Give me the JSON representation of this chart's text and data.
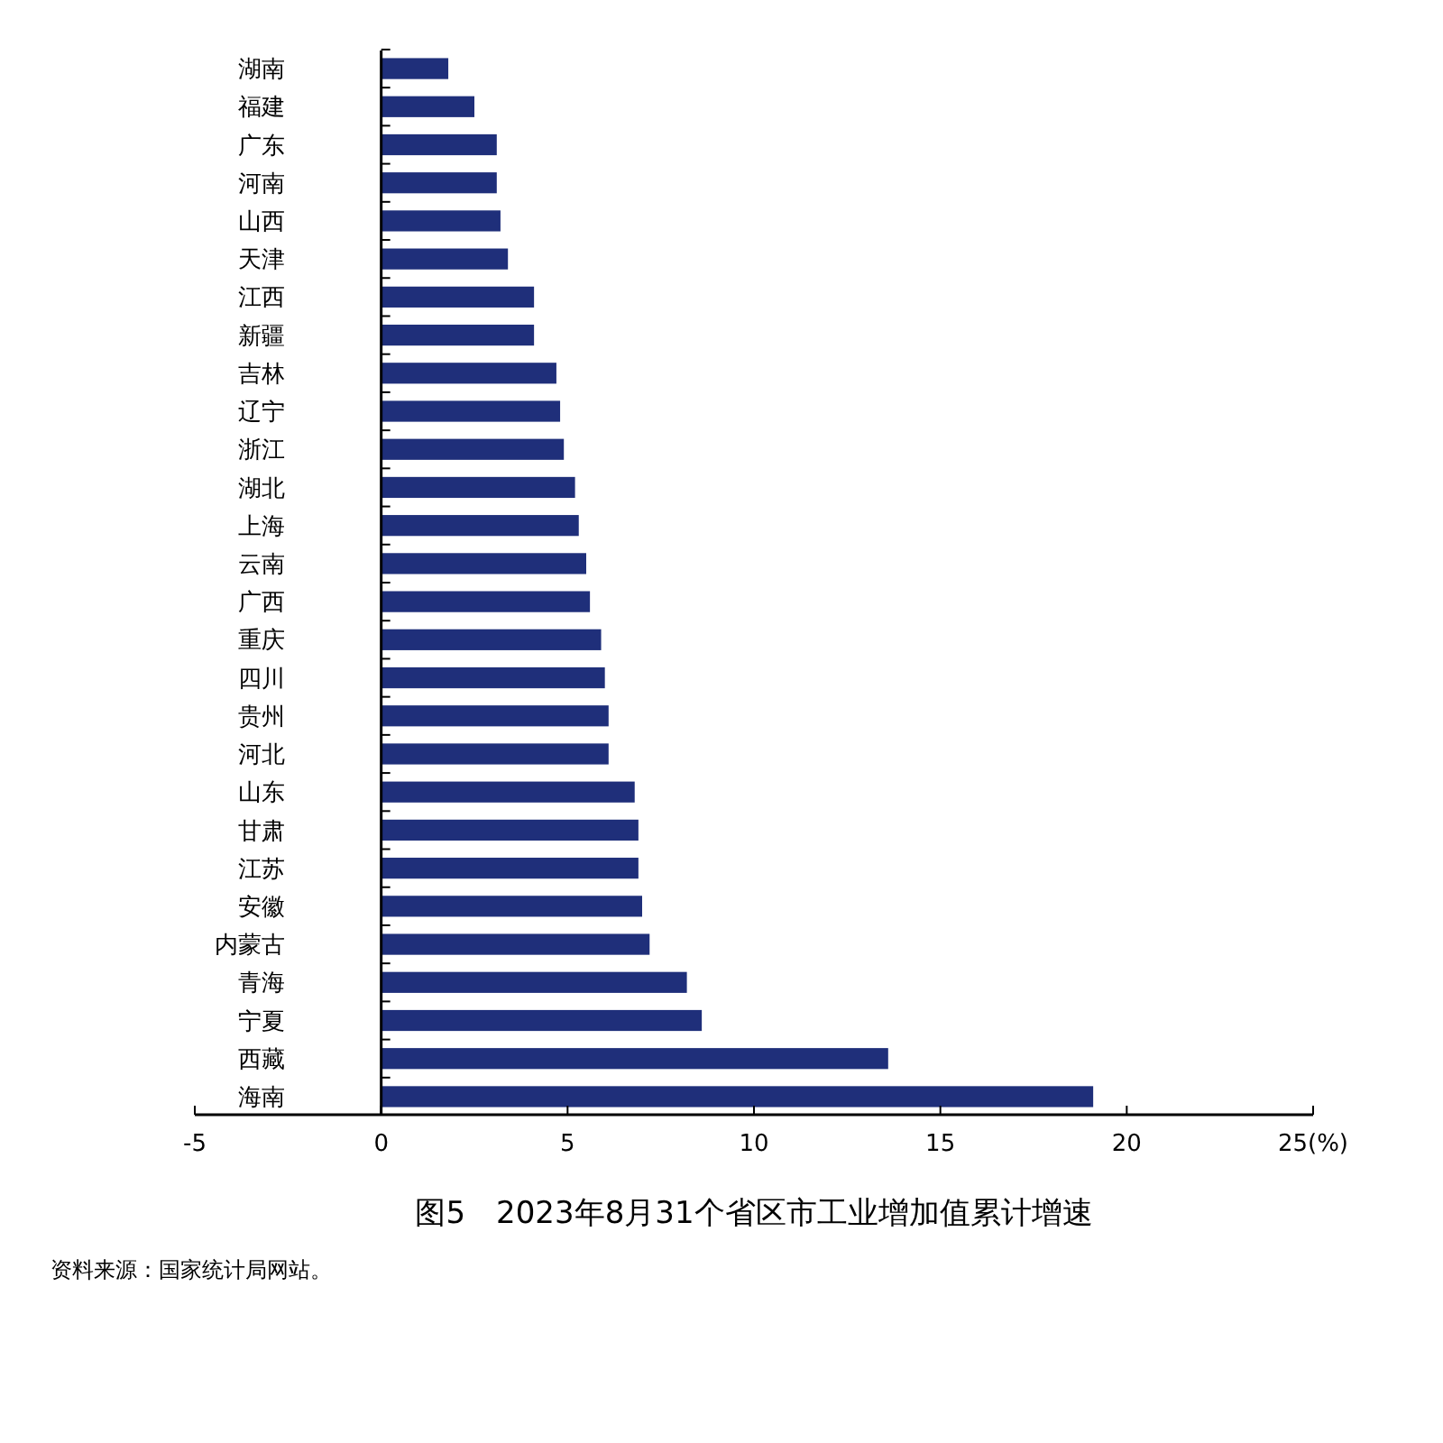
{
  "chart_data": {
    "type": "bar",
    "orientation": "horizontal",
    "title": "图5　2023年8月31个省区市工业增加值累计增速",
    "annotations": [
      "资料来源：国家统计局网站。"
    ],
    "categories": [
      "湖南",
      "福建",
      "广东",
      "河南",
      "山西",
      "天津",
      "江西",
      "新疆",
      "吉林",
      "辽宁",
      "浙江",
      "湖北",
      "上海",
      "云南",
      "广西",
      "重庆",
      "四川",
      "贵州",
      "河北",
      "山东",
      "甘肃",
      "江苏",
      "安徽",
      "内蒙古",
      "青海",
      "宁夏",
      "西藏",
      "海南"
    ],
    "values": [
      1.8,
      2.5,
      3.1,
      3.1,
      3.2,
      3.4,
      4.1,
      4.1,
      4.7,
      4.8,
      4.9,
      5.2,
      5.3,
      5.5,
      5.6,
      5.9,
      6.0,
      6.1,
      6.1,
      6.8,
      6.9,
      6.9,
      7.0,
      7.2,
      8.2,
      8.6,
      13.6,
      19.1
    ],
    "color": "#1f2f7a",
    "xlim": [
      -5,
      25
    ],
    "xticks": [
      -5,
      0,
      5,
      10,
      15,
      20,
      {
        "value": 25,
        "label": "25(%)"
      }
    ]
  }
}
